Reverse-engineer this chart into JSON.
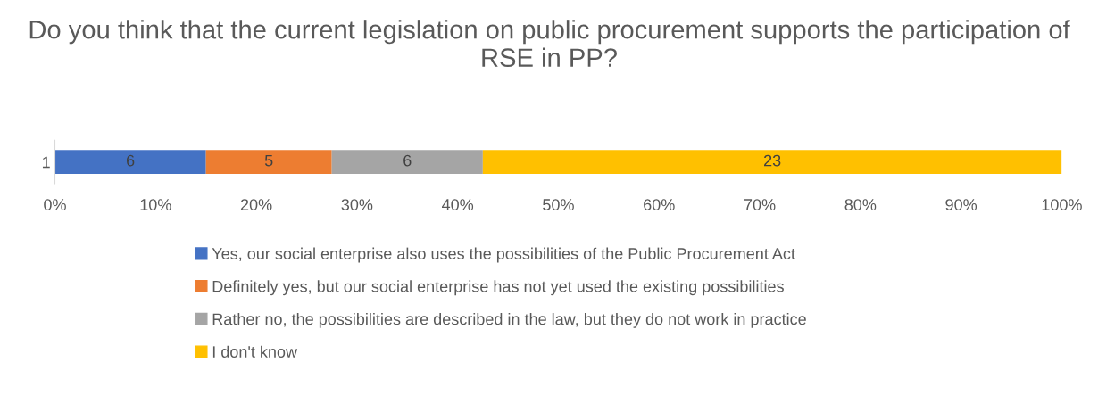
{
  "chart_data": {
    "type": "bar",
    "orientation": "horizontal",
    "stacked": true,
    "title": "Do you think that the current legislation on public procurement supports the participation of RSE in PP?",
    "categories": [
      "1"
    ],
    "series": [
      {
        "name": "Yes, our social enterprise also uses the possibilities of the Public Procurement Act",
        "color": "#4472c4",
        "values": [
          15
        ]
      },
      {
        "name": "Definitely yes, but our social enterprise has not yet used the existing possibilities",
        "color": "#ed7d31",
        "values": [
          12.5
        ]
      },
      {
        "name": "Rather no, the possibilities are described in the law, but they do not work in practice",
        "color": "#a5a5a5",
        "values": [
          15
        ]
      },
      {
        "name": "I don't know",
        "color": "#ffc000",
        "values": [
          57.5
        ]
      }
    ],
    "annotations": [
      "6",
      "5",
      "6",
      "23"
    ],
    "xlim": [
      0,
      100
    ],
    "xticks": [
      {
        "value": 0,
        "label": "0%"
      },
      {
        "value": 10,
        "label": "10%"
      },
      {
        "value": 20,
        "label": "20%"
      },
      {
        "value": 30,
        "label": "30%"
      },
      {
        "value": 40,
        "label": "40%"
      },
      {
        "value": 50,
        "label": "50%"
      },
      {
        "value": 60,
        "label": "60%"
      },
      {
        "value": 70,
        "label": "70%"
      },
      {
        "value": 80,
        "label": "80%"
      },
      {
        "value": 90,
        "label": "90%"
      },
      {
        "value": 100,
        "label": "100%"
      }
    ],
    "grid": false,
    "legend": "bottom"
  }
}
